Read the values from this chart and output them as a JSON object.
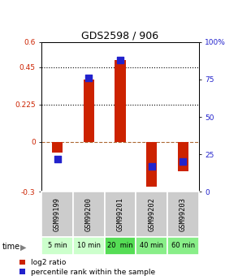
{
  "title": "GDS2598 / 906",
  "samples": [
    "GSM99199",
    "GSM99200",
    "GSM99201",
    "GSM99202",
    "GSM99203"
  ],
  "time_labels": [
    "5 min",
    "10 min",
    "20  min",
    "40 min",
    "60 min"
  ],
  "log2_ratio": [
    -0.065,
    0.375,
    0.49,
    -0.27,
    -0.175
  ],
  "percentile_rank": [
    22,
    76,
    88,
    17,
    20
  ],
  "ylim_left": [
    -0.3,
    0.6
  ],
  "ylim_right": [
    0,
    100
  ],
  "yticks_left": [
    -0.3,
    0,
    0.225,
    0.45,
    0.6
  ],
  "yticks_right": [
    0,
    25,
    50,
    75,
    100
  ],
  "hlines": [
    0.225,
    0.45
  ],
  "bar_color": "#cc2200",
  "dot_color": "#2222cc",
  "bar_width": 0.35,
  "dot_size": 28,
  "sample_bg": "#cccccc",
  "time_bg_colors": [
    "#ccffcc",
    "#ccffcc",
    "#55dd55",
    "#88ee88",
    "#88ee88"
  ],
  "legend_bar_label": "log2 ratio",
  "legend_dot_label": "percentile rank within the sample"
}
